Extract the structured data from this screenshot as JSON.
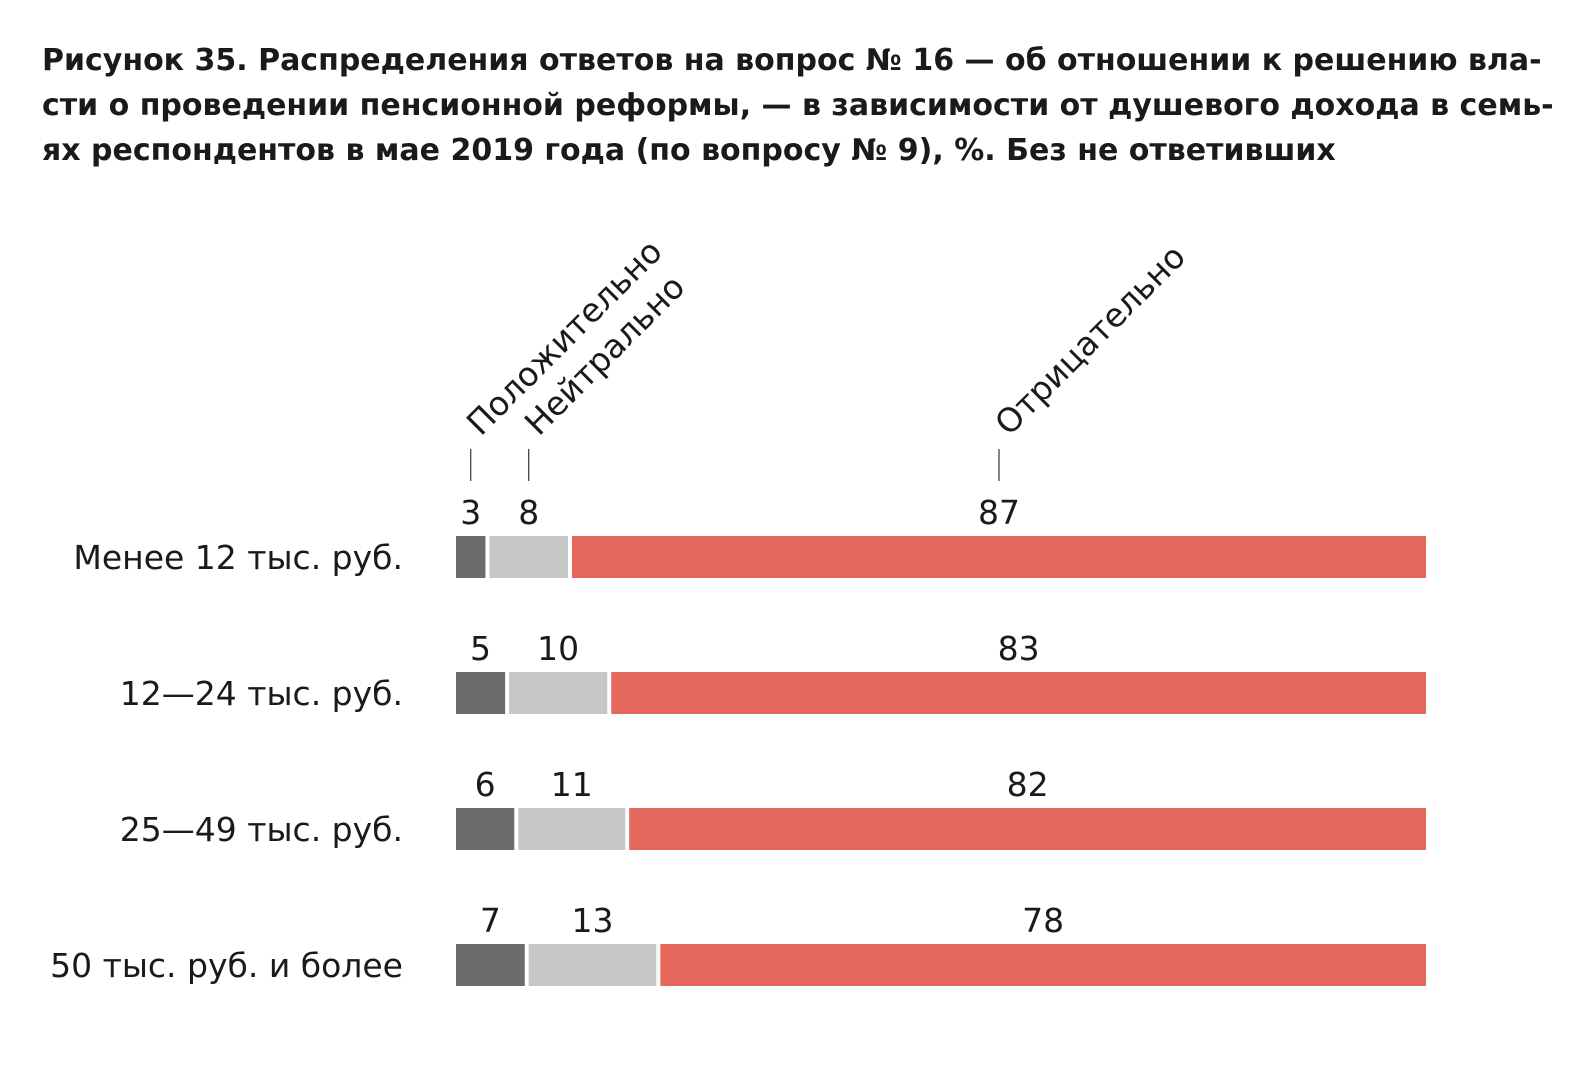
{
  "chart_data": {
    "type": "bar",
    "stacked": true,
    "orientation": "horizontal",
    "title_lines": [
      "Рисунок 35. Распределения ответов на вопрос № 16 — об отношении к решению вла-",
      "сти о проведении пенсионной реформы, — в зависимости от душевого дохода в семь-",
      "ях респондентов в мае 2019 года (по вопросу № 9), %. Без не ответивших"
    ],
    "categories": [
      "Менее 12 тыс. руб.",
      "12—24 тыс. руб.",
      "25—49 тыс. руб.",
      "50 тыс. руб. и более"
    ],
    "series": [
      {
        "name": "Положительно",
        "color": "#6b6b6b",
        "values": [
          3,
          5,
          6,
          7
        ]
      },
      {
        "name": "Нейтрально",
        "color": "#c6c7c7",
        "values": [
          8,
          10,
          11,
          13
        ]
      },
      {
        "name": "Отрицательно",
        "color": "#e4685c",
        "values": [
          87,
          83,
          82,
          78
        ]
      }
    ],
    "legend_placement": "top, rotated labels above first bar",
    "grid": false
  }
}
